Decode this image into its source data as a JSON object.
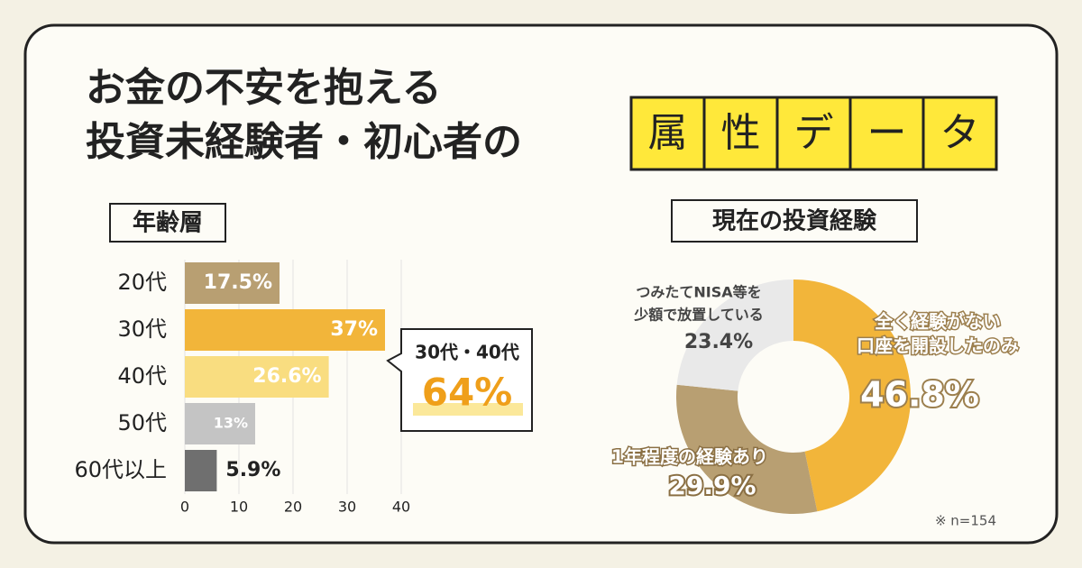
{
  "header": {
    "title_lines": [
      "お金の不安を抱える",
      "投資未経験者・初心者の"
    ],
    "boxed_chars": [
      "属",
      "性",
      "デ",
      "ー",
      "タ"
    ]
  },
  "chart_data": [
    {
      "type": "hbar",
      "title": "年齢層",
      "categories": [
        "20代",
        "30代",
        "40代",
        "50代",
        "60代以上"
      ],
      "values": [
        17.5,
        37,
        26.6,
        13,
        5.9
      ],
      "value_labels": [
        "17.5%",
        "37%",
        "26.6%",
        "13%",
        "5.9%"
      ],
      "colors": [
        "#b89f72",
        "#f2b53a",
        "#f9dd80",
        "#c4c4c4",
        "#6f6f6f"
      ],
      "xlim": [
        0,
        40
      ],
      "xticks": [
        0,
        10,
        20,
        30,
        40
      ],
      "grid": true,
      "annotation": {
        "label": "30代・40代",
        "value": "64%"
      }
    },
    {
      "type": "donut",
      "title": "現在の投資経験",
      "categories": [
        [
          "全く経験がない",
          "口座を開設したのみ"
        ],
        [
          "1年程度の経験あり"
        ],
        [
          "つみたてNISA等を",
          "少額で放置している"
        ]
      ],
      "values": [
        46.8,
        29.9,
        23.4
      ],
      "value_labels": [
        "46.8%",
        "29.9%",
        "23.4%"
      ],
      "colors": [
        "#f2b53a",
        "#b89f72",
        "#e9e9e9"
      ],
      "note": "※ n=154"
    }
  ]
}
